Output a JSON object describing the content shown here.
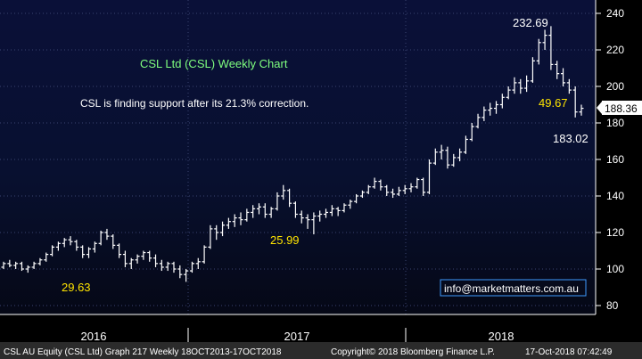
{
  "chart_data": {
    "type": "ohlc",
    "title": "CSL Ltd (CSL) Weekly Chart",
    "subtitle": "CSL is finding support after its 21.3% correction.",
    "watermark": "info@marketmatters.com.au",
    "ylim": [
      80,
      240
    ],
    "y_ticks": [
      80,
      100,
      120,
      140,
      160,
      180,
      200,
      220,
      240
    ],
    "x_labels": [
      "2016",
      "2017",
      "2018"
    ],
    "last_price": "188.36",
    "annotations": [
      {
        "text": "232.69",
        "color": "white"
      },
      {
        "text": "49.67",
        "color": "yellow"
      },
      {
        "text": "183.02",
        "color": "white"
      },
      {
        "text": "25.99",
        "color": "yellow"
      },
      {
        "text": "29.63",
        "color": "yellow"
      }
    ],
    "series": [
      {
        "values": [
          [
            101,
            104,
            100,
            103
          ],
          [
            103,
            105,
            101,
            102
          ],
          [
            102,
            104,
            100,
            103
          ],
          [
            103,
            104,
            99,
            100
          ],
          [
            100,
            102,
            98,
            101
          ],
          [
            101,
            104,
            100,
            103
          ],
          [
            103,
            106,
            102,
            105
          ],
          [
            105,
            109,
            104,
            108
          ],
          [
            108,
            113,
            107,
            112
          ],
          [
            112,
            115,
            110,
            114
          ],
          [
            114,
            117,
            112,
            116
          ],
          [
            116,
            118,
            113,
            115
          ],
          [
            115,
            116,
            110,
            112
          ],
          [
            112,
            113,
            106,
            108
          ],
          [
            108,
            112,
            106,
            111
          ],
          [
            111,
            115,
            109,
            114
          ],
          [
            114,
            121,
            113,
            120
          ],
          [
            120,
            122,
            116,
            118
          ],
          [
            118,
            119,
            111,
            113
          ],
          [
            113,
            114,
            106,
            108
          ],
          [
            108,
            110,
            101,
            103
          ],
          [
            103,
            106,
            100,
            105
          ],
          [
            105,
            108,
            103,
            107
          ],
          [
            107,
            110,
            105,
            109
          ],
          [
            109,
            110,
            104,
            106
          ],
          [
            106,
            108,
            101,
            103
          ],
          [
            103,
            105,
            99,
            101
          ],
          [
            101,
            104,
            99,
            103
          ],
          [
            103,
            104,
            98,
            100
          ],
          [
            100,
            102,
            95,
            97
          ],
          [
            97,
            100,
            93,
            99
          ],
          [
            99,
            104,
            98,
            103
          ],
          [
            103,
            106,
            100,
            104
          ],
          [
            104,
            113,
            103,
            112
          ],
          [
            112,
            124,
            111,
            122
          ],
          [
            122,
            124,
            116,
            120
          ],
          [
            120,
            126,
            118,
            124
          ],
          [
            124,
            128,
            122,
            126
          ],
          [
            126,
            130,
            123,
            128
          ],
          [
            128,
            131,
            124,
            127
          ],
          [
            127,
            133,
            126,
            131
          ],
          [
            131,
            135,
            128,
            133
          ],
          [
            133,
            136,
            130,
            134
          ],
          [
            134,
            136,
            128,
            130
          ],
          [
            130,
            134,
            128,
            133
          ],
          [
            133,
            142,
            132,
            140
          ],
          [
            140,
            146,
            138,
            143
          ],
          [
            143,
            144,
            134,
            136
          ],
          [
            136,
            137,
            128,
            130
          ],
          [
            130,
            132,
            125,
            128
          ],
          [
            128,
            130,
            122,
            127
          ],
          [
            127,
            131,
            119,
            129
          ],
          [
            129,
            132,
            126,
            130
          ],
          [
            130,
            133,
            128,
            131
          ],
          [
            131,
            135,
            129,
            133
          ],
          [
            133,
            134,
            129,
            132
          ],
          [
            132,
            136,
            131,
            135
          ],
          [
            135,
            138,
            133,
            137
          ],
          [
            137,
            141,
            136,
            140
          ],
          [
            140,
            143,
            139,
            142
          ],
          [
            142,
            146,
            141,
            145
          ],
          [
            145,
            150,
            144,
            148
          ],
          [
            148,
            149,
            143,
            145
          ],
          [
            145,
            146,
            140,
            142
          ],
          [
            142,
            144,
            139,
            141
          ],
          [
            141,
            145,
            140,
            143
          ],
          [
            143,
            146,
            141,
            144
          ],
          [
            144,
            147,
            142,
            145
          ],
          [
            145,
            150,
            144,
            149
          ],
          [
            149,
            150,
            140,
            142
          ],
          [
            142,
            160,
            141,
            158
          ],
          [
            158,
            166,
            157,
            164
          ],
          [
            164,
            168,
            160,
            165
          ],
          [
            165,
            167,
            155,
            157
          ],
          [
            157,
            163,
            156,
            161
          ],
          [
            161,
            166,
            159,
            164
          ],
          [
            164,
            173,
            163,
            171
          ],
          [
            171,
            180,
            170,
            178
          ],
          [
            178,
            185,
            177,
            183
          ],
          [
            183,
            189,
            181,
            187
          ],
          [
            187,
            191,
            184,
            188
          ],
          [
            188,
            192,
            185,
            190
          ],
          [
            190,
            196,
            188,
            194
          ],
          [
            194,
            200,
            193,
            198
          ],
          [
            198,
            205,
            196,
            202
          ],
          [
            202,
            204,
            196,
            199
          ],
          [
            199,
            206,
            197,
            203
          ],
          [
            203,
            216,
            202,
            214
          ],
          [
            214,
            226,
            212,
            224
          ],
          [
            224,
            231,
            220,
            228
          ],
          [
            228,
            233,
            209,
            212
          ],
          [
            212,
            214,
            204,
            207
          ],
          [
            207,
            210,
            200,
            202
          ],
          [
            202,
            204,
            196,
            198
          ],
          [
            198,
            200,
            183,
            186
          ],
          [
            186,
            190,
            184,
            188
          ]
        ]
      }
    ]
  }
}
